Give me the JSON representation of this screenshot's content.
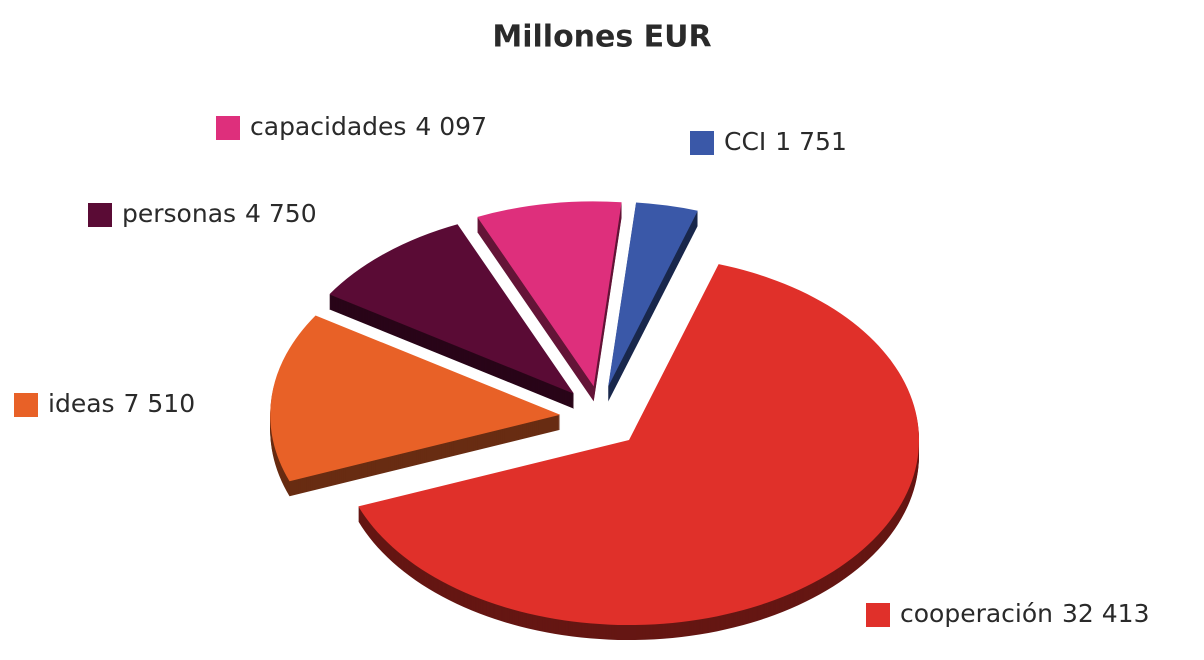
{
  "chart_data": {
    "type": "pie",
    "title": "Millones EUR",
    "categories": [
      "cooperación",
      "ideas",
      "personas",
      "capacidades",
      "CCI"
    ],
    "values": [
      32413,
      7510,
      4750,
      4097,
      1751
    ],
    "value_labels": [
      "32 413",
      "7 510",
      "4 750",
      "4 097",
      "1 751"
    ],
    "colors": [
      "#e0302a",
      "#e86127",
      "#5a0b35",
      "#de2f7c",
      "#3a58a8"
    ]
  }
}
